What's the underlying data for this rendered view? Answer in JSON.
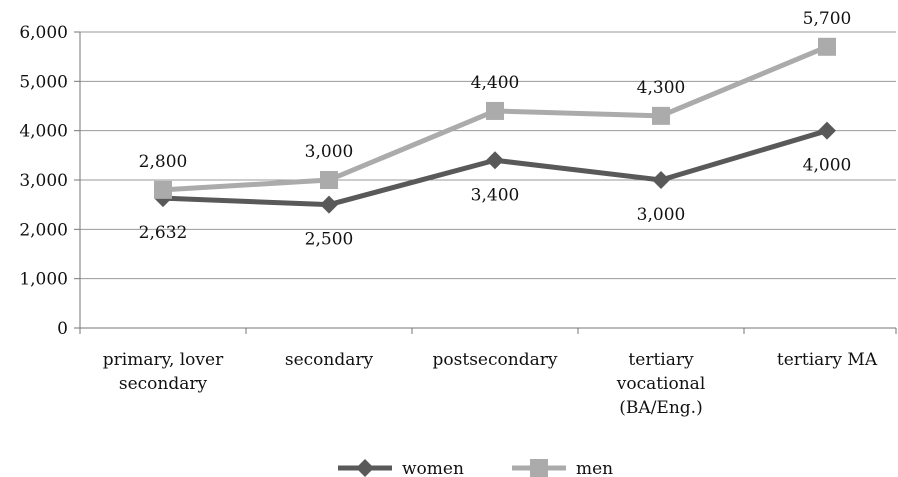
{
  "chart_data": {
    "type": "line",
    "title": "",
    "xlabel": "",
    "ylabel": "",
    "categories": [
      [
        "primary, lover",
        "secondary"
      ],
      [
        "secondary"
      ],
      [
        "postsecondary"
      ],
      [
        "tertiary",
        "vocational",
        "(BA/Eng.)"
      ],
      [
        "tertiary MA"
      ]
    ],
    "ylim": [
      0,
      6000
    ],
    "yticks": [
      0,
      1000,
      2000,
      3000,
      4000,
      5000,
      6000
    ],
    "ytick_labels": [
      "0",
      "1,000",
      "2,000",
      "3,000",
      "4,000",
      "5,000",
      "6,000"
    ],
    "grid": "horizontal",
    "legend_position": "bottom",
    "series": [
      {
        "name": "women",
        "values": [
          2632,
          2500,
          3400,
          3000,
          4000
        ],
        "labels": [
          "2,632",
          "2,500",
          "3,400",
          "3,000",
          "4,000"
        ],
        "color": "#595959",
        "marker": "diamond",
        "label_side": "below"
      },
      {
        "name": "men",
        "values": [
          2800,
          3000,
          4400,
          4300,
          5700
        ],
        "labels": [
          "2,800",
          "3,000",
          "4,400",
          "4,300",
          "5,700"
        ],
        "color": "#ababab",
        "marker": "square",
        "label_side": "above"
      }
    ]
  }
}
